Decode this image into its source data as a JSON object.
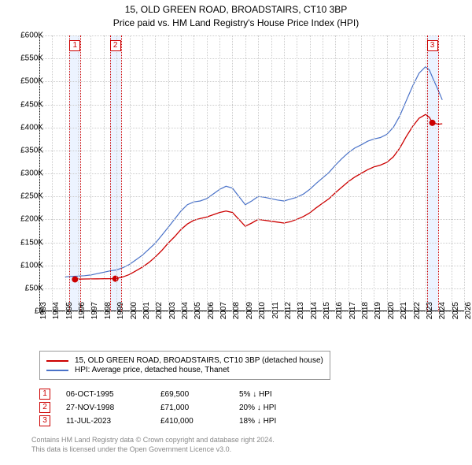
{
  "title": {
    "line1": "15, OLD GREEN ROAD, BROADSTAIRS, CT10 3BP",
    "line2": "Price paid vs. HM Land Registry's House Price Index (HPI)"
  },
  "chart": {
    "type": "line",
    "x_axis": {
      "min": 1993,
      "max": 2026,
      "tick_step": 1,
      "ticks": [
        1993,
        1994,
        1995,
        1996,
        1997,
        1998,
        1999,
        2000,
        2001,
        2002,
        2003,
        2004,
        2005,
        2006,
        2007,
        2008,
        2009,
        2010,
        2011,
        2012,
        2013,
        2014,
        2015,
        2016,
        2017,
        2018,
        2019,
        2020,
        2021,
        2022,
        2023,
        2024,
        2025,
        2026
      ]
    },
    "y_axis": {
      "min": 0,
      "max": 600000,
      "tick_step": 50000,
      "ticks": [
        0,
        50000,
        100000,
        150000,
        200000,
        250000,
        300000,
        350000,
        400000,
        450000,
        500000,
        550000,
        600000
      ],
      "tick_labels": [
        "£0",
        "£50K",
        "£100K",
        "£150K",
        "£200K",
        "£250K",
        "£300K",
        "£350K",
        "£400K",
        "£450K",
        "£500K",
        "£550K",
        "£600K"
      ]
    },
    "grid_color": "#cccccc",
    "background_color": "#ffffff",
    "series": [
      {
        "id": "hpi",
        "label": "HPI: Average price, detached house, Thanet",
        "color": "#4a72c8",
        "width": 1.2,
        "points": [
          [
            1995.0,
            75000
          ],
          [
            1995.5,
            76000
          ],
          [
            1996.0,
            76500
          ],
          [
            1996.5,
            77500
          ],
          [
            1997.0,
            79000
          ],
          [
            1997.5,
            82000
          ],
          [
            1998.0,
            85000
          ],
          [
            1998.5,
            88000
          ],
          [
            1999.0,
            90000
          ],
          [
            1999.5,
            95000
          ],
          [
            2000.0,
            102000
          ],
          [
            2000.5,
            112000
          ],
          [
            2001.0,
            122000
          ],
          [
            2001.5,
            135000
          ],
          [
            2002.0,
            148000
          ],
          [
            2002.5,
            165000
          ],
          [
            2003.0,
            182000
          ],
          [
            2003.5,
            200000
          ],
          [
            2004.0,
            218000
          ],
          [
            2004.5,
            232000
          ],
          [
            2005.0,
            238000
          ],
          [
            2005.5,
            240000
          ],
          [
            2006.0,
            245000
          ],
          [
            2006.5,
            255000
          ],
          [
            2007.0,
            265000
          ],
          [
            2007.5,
            272000
          ],
          [
            2008.0,
            268000
          ],
          [
            2008.5,
            250000
          ],
          [
            2009.0,
            232000
          ],
          [
            2009.5,
            240000
          ],
          [
            2010.0,
            250000
          ],
          [
            2010.5,
            248000
          ],
          [
            2011.0,
            245000
          ],
          [
            2011.5,
            242000
          ],
          [
            2012.0,
            240000
          ],
          [
            2012.5,
            244000
          ],
          [
            2013.0,
            248000
          ],
          [
            2013.5,
            255000
          ],
          [
            2014.0,
            265000
          ],
          [
            2014.5,
            278000
          ],
          [
            2015.0,
            290000
          ],
          [
            2015.5,
            302000
          ],
          [
            2016.0,
            318000
          ],
          [
            2016.5,
            332000
          ],
          [
            2017.0,
            345000
          ],
          [
            2017.5,
            355000
          ],
          [
            2018.0,
            362000
          ],
          [
            2018.5,
            370000
          ],
          [
            2019.0,
            375000
          ],
          [
            2019.5,
            378000
          ],
          [
            2020.0,
            385000
          ],
          [
            2020.5,
            400000
          ],
          [
            2021.0,
            425000
          ],
          [
            2021.5,
            458000
          ],
          [
            2022.0,
            490000
          ],
          [
            2022.5,
            518000
          ],
          [
            2023.0,
            532000
          ],
          [
            2023.3,
            525000
          ],
          [
            2023.6,
            505000
          ],
          [
            2024.0,
            480000
          ],
          [
            2024.3,
            460000
          ]
        ]
      },
      {
        "id": "property",
        "label": "15, OLD GREEN ROAD, BROADSTAIRS, CT10 3BP (detached house)",
        "color": "#cc0000",
        "width": 1.3,
        "points": [
          [
            1995.77,
            69500
          ],
          [
            1996.0,
            70000
          ],
          [
            1996.5,
            70300
          ],
          [
            1997.0,
            70500
          ],
          [
            1997.5,
            70700
          ],
          [
            1998.0,
            70800
          ],
          [
            1998.5,
            70900
          ],
          [
            1998.91,
            71000
          ],
          [
            1999.5,
            75000
          ],
          [
            2000.0,
            80000
          ],
          [
            2000.5,
            88000
          ],
          [
            2001.0,
            96000
          ],
          [
            2001.5,
            106000
          ],
          [
            2002.0,
            118000
          ],
          [
            2002.5,
            132000
          ],
          [
            2003.0,
            148000
          ],
          [
            2003.5,
            162000
          ],
          [
            2004.0,
            178000
          ],
          [
            2004.5,
            190000
          ],
          [
            2005.0,
            198000
          ],
          [
            2005.5,
            202000
          ],
          [
            2006.0,
            205000
          ],
          [
            2006.5,
            210000
          ],
          [
            2007.0,
            215000
          ],
          [
            2007.5,
            218000
          ],
          [
            2008.0,
            215000
          ],
          [
            2008.5,
            200000
          ],
          [
            2009.0,
            185000
          ],
          [
            2009.5,
            192000
          ],
          [
            2010.0,
            200000
          ],
          [
            2010.5,
            198000
          ],
          [
            2011.0,
            196000
          ],
          [
            2011.5,
            194000
          ],
          [
            2012.0,
            192000
          ],
          [
            2012.5,
            195000
          ],
          [
            2013.0,
            200000
          ],
          [
            2013.5,
            206000
          ],
          [
            2014.0,
            214000
          ],
          [
            2014.5,
            225000
          ],
          [
            2015.0,
            235000
          ],
          [
            2015.5,
            245000
          ],
          [
            2016.0,
            258000
          ],
          [
            2016.5,
            270000
          ],
          [
            2017.0,
            282000
          ],
          [
            2017.5,
            292000
          ],
          [
            2018.0,
            300000
          ],
          [
            2018.5,
            308000
          ],
          [
            2019.0,
            314000
          ],
          [
            2019.5,
            318000
          ],
          [
            2020.0,
            324000
          ],
          [
            2020.5,
            336000
          ],
          [
            2021.0,
            355000
          ],
          [
            2021.5,
            380000
          ],
          [
            2022.0,
            402000
          ],
          [
            2022.5,
            420000
          ],
          [
            2023.0,
            428000
          ],
          [
            2023.3,
            422000
          ],
          [
            2023.53,
            410000
          ],
          [
            2024.0,
            407000
          ],
          [
            2024.3,
            408000
          ]
        ]
      }
    ],
    "sale_markers": [
      {
        "n": "1",
        "date_frac": 1995.77,
        "price": 69500
      },
      {
        "n": "2",
        "date_frac": 1998.91,
        "price": 71000
      },
      {
        "n": "3",
        "date_frac": 2023.53,
        "price": 410000
      }
    ],
    "marker_color": "#cc0000",
    "marker_radius": 4
  },
  "legend": {
    "items": [
      {
        "color": "#cc0000",
        "label": "15, OLD GREEN ROAD, BROADSTAIRS, CT10 3BP (detached house)"
      },
      {
        "color": "#4a72c8",
        "label": "HPI: Average price, detached house, Thanet"
      }
    ]
  },
  "sales_table": {
    "rows": [
      {
        "n": "1",
        "date": "06-OCT-1995",
        "price": "£69,500",
        "hpi": "5% ↓ HPI"
      },
      {
        "n": "2",
        "date": "27-NOV-1998",
        "price": "£71,000",
        "hpi": "20% ↓ HPI"
      },
      {
        "n": "3",
        "date": "11-JUL-2023",
        "price": "£410,000",
        "hpi": "18% ↓ HPI"
      }
    ]
  },
  "footer": {
    "line1": "Contains HM Land Registry data © Crown copyright and database right 2024.",
    "line2": "This data is licensed under the Open Government Licence v3.0."
  }
}
